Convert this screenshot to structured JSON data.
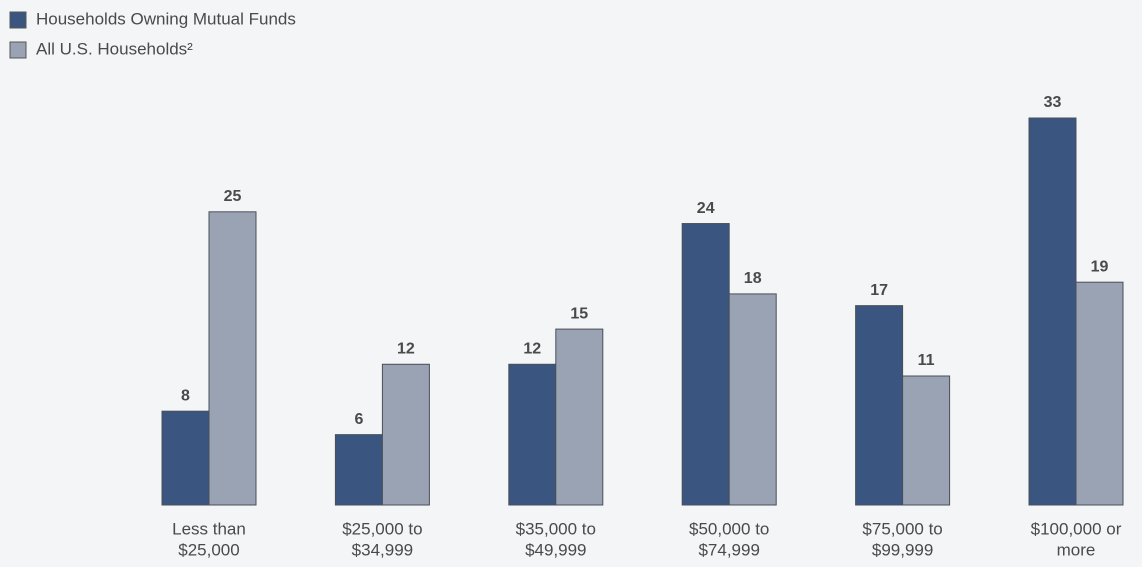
{
  "chart_data": {
    "type": "bar",
    "categories": [
      [
        "Less than",
        "$25,000"
      ],
      [
        "$25,000 to",
        "$34,999"
      ],
      [
        "$35,000 to",
        "$49,999"
      ],
      [
        "$50,000 to",
        "$74,999"
      ],
      [
        "$75,000 to",
        "$99,999"
      ],
      [
        "$100,000 or",
        "more"
      ]
    ],
    "series": [
      {
        "name": "Households Owning Mutual Funds",
        "color": "#3a5680",
        "values": [
          8,
          6,
          12,
          24,
          17,
          33
        ]
      },
      {
        "name": "All U.S. Households²",
        "color": "#9aa3b3",
        "values": [
          25,
          12,
          15,
          18,
          11,
          19
        ]
      }
    ]
  }
}
